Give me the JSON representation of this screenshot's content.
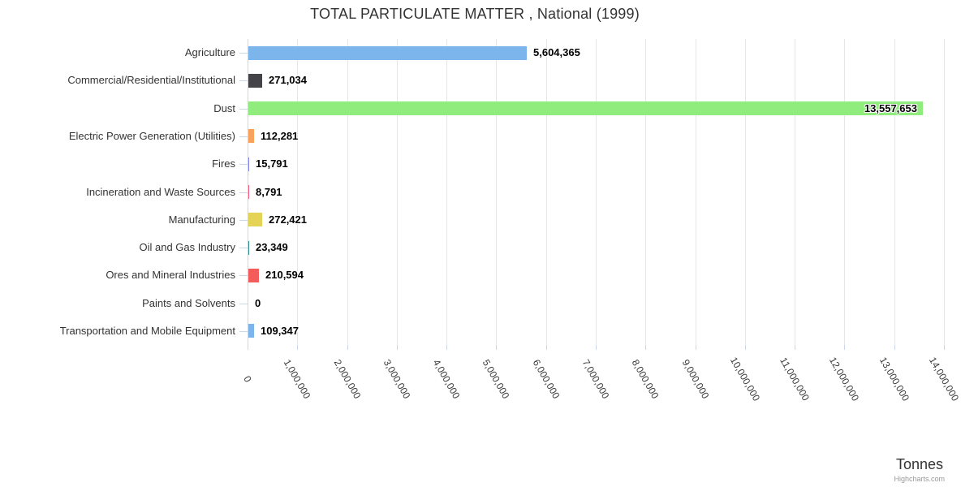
{
  "chart_data": {
    "type": "bar",
    "title": "TOTAL PARTICULATE MATTER , National (1999)",
    "xlabel": "Tonnes",
    "credit": "Highcharts.com",
    "categories": [
      "Agriculture",
      "Commercial/Residential/Institutional",
      "Dust",
      "Electric Power Generation (Utilities)",
      "Fires",
      "Incineration and Waste Sources",
      "Manufacturing",
      "Oil and Gas Industry",
      "Ores and Mineral Industries",
      "Paints and Solvents",
      "Transportation and Mobile Equipment"
    ],
    "values": [
      5604365,
      271034,
      13557653,
      112281,
      15791,
      8791,
      272421,
      23349,
      210594,
      0,
      109347
    ],
    "value_labels": [
      "5,604,365",
      "271,034",
      "13,557,653",
      "112,281",
      "15,791",
      "8,791",
      "272,421",
      "23,349",
      "210,594",
      "0",
      "109,347"
    ],
    "bar_colors": [
      "#7cb5ec",
      "#434348",
      "#90ed7d",
      "#f7a35c",
      "#8085e9",
      "#f15c80",
      "#e4d354",
      "#2b908f",
      "#f45b5b",
      "#91e8e1",
      "#7cb5ec"
    ],
    "axis_tick_labels": [
      "0",
      "1,000,000",
      "2,000,000",
      "3,000,000",
      "4,000,000",
      "5,000,000",
      "6,000,000",
      "7,000,000",
      "8,000,000",
      "9,000,000",
      "10,000,000",
      "11,000,000",
      "12,000,000",
      "13,000,000",
      "14,000,000"
    ],
    "axis_min": 0,
    "axis_max": 14000000,
    "grid": "vertical-only",
    "legend": "none",
    "colors": {
      "title_text": "#333333",
      "category_text": "#333333",
      "tick_text": "#3a3a3a",
      "grid_line": "#e6e6e6",
      "axis_line": "#ccd6eb",
      "credit_text": "#999999"
    }
  }
}
